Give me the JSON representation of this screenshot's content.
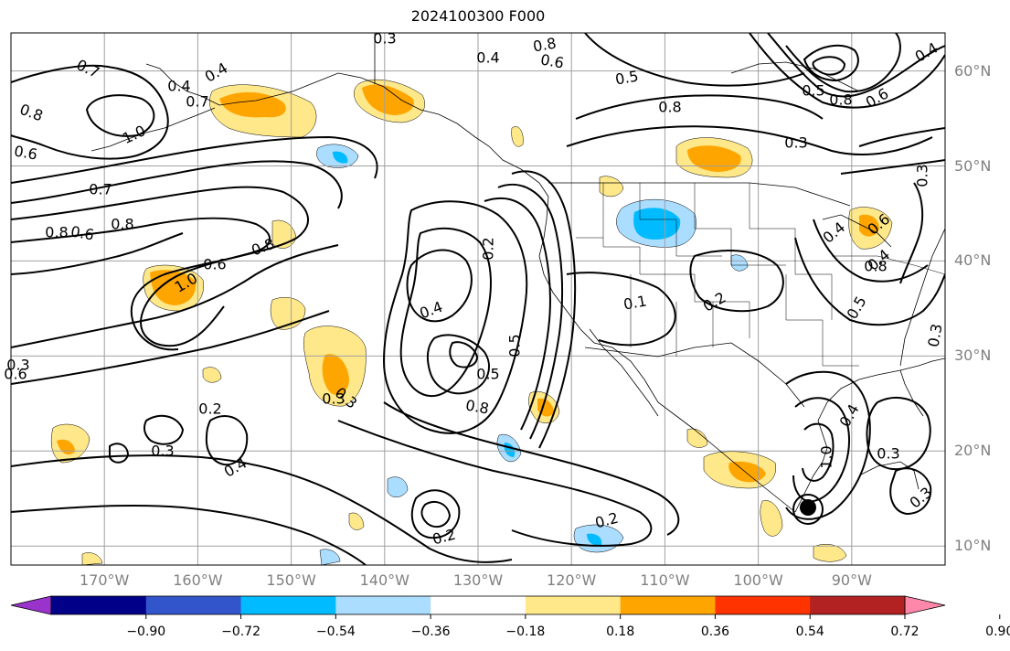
{
  "title": "2024100300 F000",
  "map": {
    "projection": "cylindrical",
    "lon_range": [
      -180,
      -80
    ],
    "lat_range": [
      8,
      64
    ],
    "lat_labels": [
      "60°N",
      "50°N",
      "40°N",
      "30°N",
      "20°N",
      "10°N"
    ],
    "lon_labels": [
      "170°W",
      "160°W",
      "150°W",
      "140°W",
      "130°W",
      "120°W",
      "110°W",
      "100°W",
      "90°W"
    ],
    "contour_labels": [
      "0.3",
      "0.8",
      "0.6",
      "0.4",
      "0.7",
      "0.5",
      "0.4",
      "0.8",
      "0.4",
      "1.0",
      "0.5",
      "0.7",
      "0.6",
      "0.8",
      "0.6",
      "0.7",
      "0.8",
      "0.8",
      "0.6",
      "0.4",
      "0.5",
      "0.3",
      "1.0",
      "0.8",
      "0.5",
      "0.2",
      "0.3",
      "0.8",
      "0.6",
      "0.8",
      "0.1",
      "0.2",
      "0.4",
      "0.8",
      "0.4",
      "0.5",
      "0.6",
      "0.3",
      "0.3",
      "0.3",
      "0.3",
      "0.2",
      "0.2",
      "0.6",
      "0.3",
      "0.4",
      "0.4",
      "0.4",
      "1.0",
      "0.3",
      "0.2",
      "0.3"
    ],
    "colors": {
      "contour": "#000000",
      "coast": "#000000",
      "grid": "#a0a0a0",
      "axis_text": "#808080"
    }
  },
  "colorbar": {
    "ticks": [
      "−0.90",
      "−0.72",
      "−0.54",
      "−0.36",
      "−0.18",
      "0.18",
      "0.36",
      "0.54",
      "0.72",
      "0.90"
    ],
    "colors": [
      "#9933cc",
      "#000088",
      "#3355cc",
      "#00bbff",
      "#aaddff",
      "#ffffff",
      "#ffe88a",
      "#ffa500",
      "#ff3300",
      "#b22222",
      "#ff88aa"
    ]
  }
}
